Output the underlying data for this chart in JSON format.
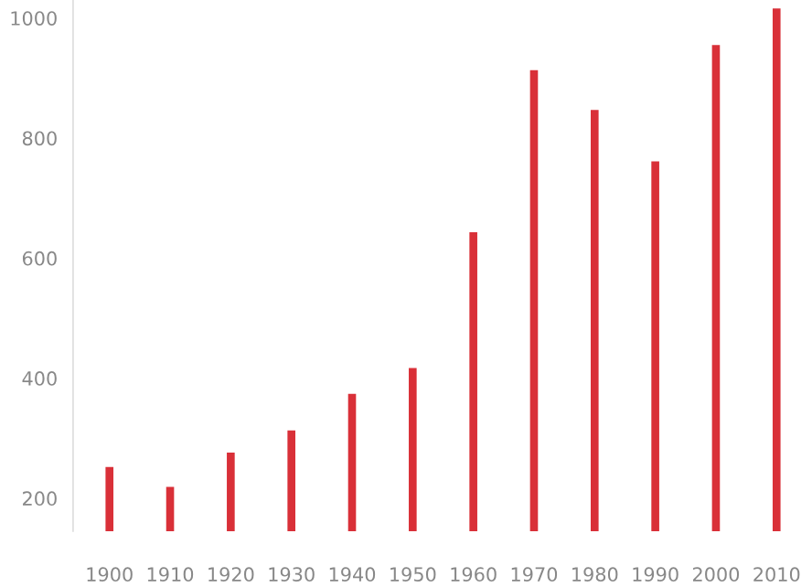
{
  "chart_data": {
    "type": "bar",
    "categories": [
      "1900",
      "1910",
      "1920",
      "1930",
      "1940",
      "1950",
      "1960",
      "1970",
      "1980",
      "1990",
      "2000",
      "2010"
    ],
    "values": [
      252,
      219,
      276,
      313,
      374,
      417,
      643,
      913,
      847,
      761,
      955,
      1016
    ],
    "color": "#d93038",
    "ylim": [
      145,
      1030
    ],
    "yticks": [
      200,
      400,
      600,
      800,
      1000
    ],
    "grid": false
  }
}
